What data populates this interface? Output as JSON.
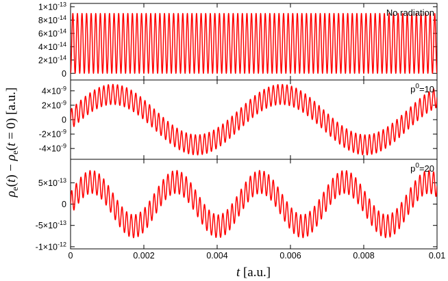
{
  "chart_data": {
    "type": "line",
    "xlabel": "t [a.u.]",
    "ylabel": "ρe(t) − ρe(t = 0) [a.u.]",
    "xlim": [
      0,
      0.01
    ],
    "x_ticks": [
      {
        "value": 0,
        "label": "0"
      },
      {
        "value": 0.002,
        "label": "0.002"
      },
      {
        "value": 0.004,
        "label": "0.004"
      },
      {
        "value": 0.006,
        "label": "0.006"
      },
      {
        "value": 0.008,
        "label": "0.008"
      },
      {
        "value": 0.01,
        "label": "0.01"
      }
    ],
    "line_color": "#ff0000",
    "panels": [
      {
        "label_base": "No radiation",
        "label_sup": "",
        "label_tail": "",
        "ylim": [
          -1e-14,
          1.05e-13
        ],
        "y_ticks": [
          {
            "value": 0,
            "mant": "0",
            "exp": ""
          },
          {
            "value": 2e-14,
            "mant": "2×10",
            "exp": "-14"
          },
          {
            "value": 4e-14,
            "mant": "4×10",
            "exp": "-14"
          },
          {
            "value": 6e-14,
            "mant": "6×10",
            "exp": "-14"
          },
          {
            "value": 8e-14,
            "mant": "8×10",
            "exp": "-14"
          },
          {
            "value": 1e-13,
            "mant": "1×10",
            "exp": "-13"
          }
        ],
        "fast_period": 0.000125,
        "fast_amplitude": 4.5e-14,
        "fast_offset": 4.5e-14,
        "fast_phase_start": "trough",
        "slow_period": 0,
        "slow_amplitude": 0
      },
      {
        "label_base": "p",
        "label_sup": "0",
        "label_tail": "=10",
        "ylim": [
          -5.5e-09,
          5.5e-09
        ],
        "y_ticks": [
          {
            "value": -4e-09,
            "mant": "-4×10",
            "exp": "-9"
          },
          {
            "value": -2e-09,
            "mant": "-2×10",
            "exp": "-9"
          },
          {
            "value": 0,
            "mant": "0",
            "exp": ""
          },
          {
            "value": 2e-09,
            "mant": "2×10",
            "exp": "-9"
          },
          {
            "value": 4e-09,
            "mant": "4×10",
            "exp": "-9"
          }
        ],
        "fast_period": 0.000125,
        "fast_amplitude": 1.4e-09,
        "fast_offset": 0,
        "fast_phase_start": "zero",
        "slow_period": 0.0046,
        "slow_amplitude": 3.5e-09
      },
      {
        "label_base": "p",
        "label_sup": "0",
        "label_tail": "=20",
        "ylim": [
          -1.05e-12,
          1.05e-12
        ],
        "y_ticks": [
          {
            "value": -1e-12,
            "mant": "-1×10",
            "exp": "-12"
          },
          {
            "value": -5e-13,
            "mant": "-5×10",
            "exp": "-13"
          },
          {
            "value": 0,
            "mant": "0",
            "exp": ""
          },
          {
            "value": 5e-13,
            "mant": "5×10",
            "exp": "-13"
          }
        ],
        "fast_period": 0.000125,
        "fast_amplitude": 2.7e-13,
        "fast_offset": 0,
        "fast_phase_start": "zero",
        "slow_period": 0.0023,
        "slow_amplitude": 5.2e-13
      }
    ]
  }
}
